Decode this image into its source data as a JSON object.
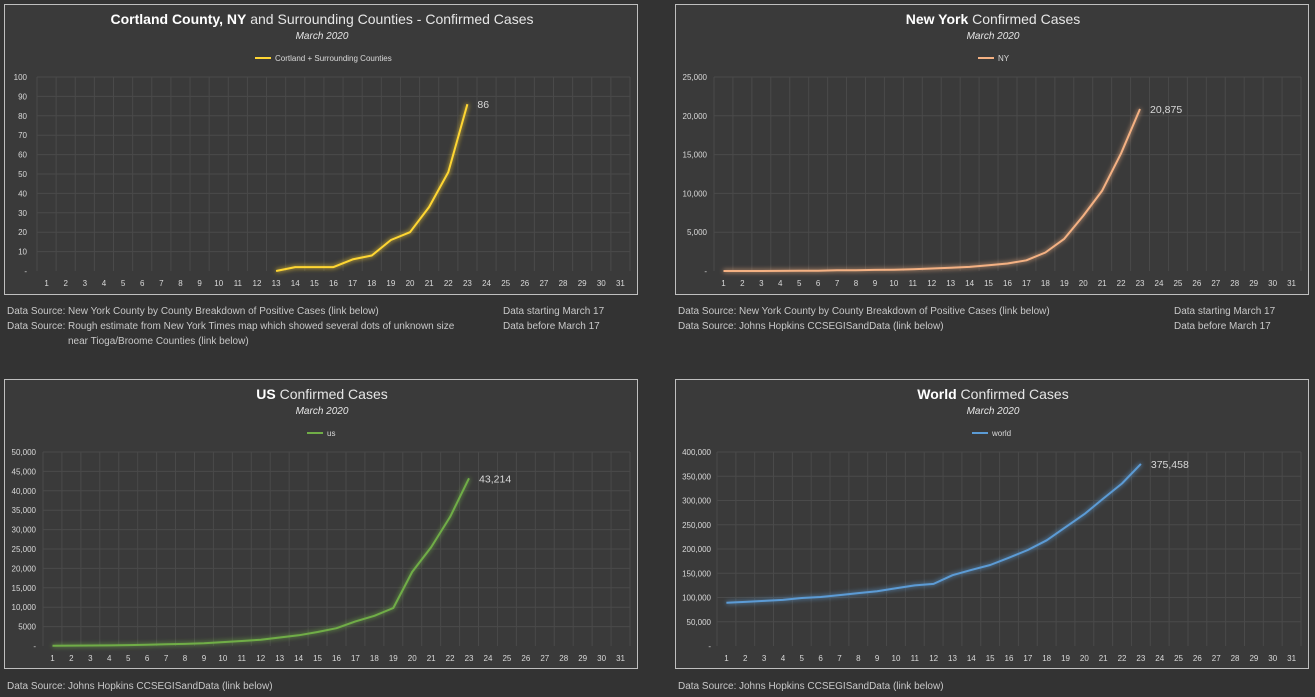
{
  "colors": {
    "background": "#333333",
    "plot": "#3a3a3a",
    "grid": "#4a4a4a",
    "cortland": "#ffd633",
    "ny": "#f4b183",
    "us": "#70ad47",
    "world": "#5b9bd5"
  },
  "chart_data": [
    {
      "id": "cortland",
      "type": "line",
      "title_bold": "Cortland County, NY",
      "title_rest": " and Surrounding Counties - Confirmed Cases",
      "subtitle": "March 2020",
      "legend": "Cortland + Surrounding Counties",
      "x": [
        1,
        2,
        3,
        4,
        5,
        6,
        7,
        8,
        9,
        10,
        11,
        12,
        13,
        14,
        15,
        16,
        17,
        18,
        19,
        20,
        21,
        22,
        23,
        24,
        25,
        26,
        27,
        28,
        29,
        30,
        31
      ],
      "ylim": [
        0,
        100
      ],
      "yticks": [
        "-",
        "10",
        "20",
        "30",
        "40",
        "50",
        "60",
        "70",
        "80",
        "90",
        "100"
      ],
      "series": [
        {
          "x": [
            13,
            14,
            15,
            16,
            17,
            18,
            19,
            20,
            21,
            22,
            23
          ],
          "values": [
            0,
            2,
            2,
            2,
            6,
            8,
            16,
            20,
            33,
            51,
            86
          ]
        }
      ],
      "end_label": "86"
    },
    {
      "id": "ny",
      "type": "line",
      "title_bold": "New York",
      "title_rest": " Confirmed Cases",
      "subtitle": "March 2020",
      "legend": "NY",
      "x": [
        1,
        2,
        3,
        4,
        5,
        6,
        7,
        8,
        9,
        10,
        11,
        12,
        13,
        14,
        15,
        16,
        17,
        18,
        19,
        20,
        21,
        22,
        23,
        24,
        25,
        26,
        27,
        28,
        29,
        30,
        31
      ],
      "ylim": [
        0,
        25000
      ],
      "yticks": [
        "-",
        "5,000",
        "10,000",
        "15,000",
        "20,000",
        "25,000"
      ],
      "series": [
        {
          "x": [
            1,
            2,
            3,
            4,
            5,
            6,
            7,
            8,
            9,
            10,
            11,
            12,
            13,
            14,
            15,
            16,
            17,
            18,
            19,
            20,
            21,
            22,
            23
          ],
          "values": [
            1,
            1,
            2,
            11,
            22,
            44,
            89,
            106,
            142,
            173,
            220,
            328,
            421,
            525,
            732,
            967,
            1374,
            2382,
            4152,
            7102,
            10356,
            15168,
            20875
          ]
        }
      ],
      "end_label": "20,875"
    },
    {
      "id": "us",
      "type": "line",
      "title_bold": "US",
      "title_rest": " Confirmed Cases",
      "subtitle": "March 2020",
      "legend": "us",
      "x": [
        1,
        2,
        3,
        4,
        5,
        6,
        7,
        8,
        9,
        10,
        11,
        12,
        13,
        14,
        15,
        16,
        17,
        18,
        19,
        20,
        21,
        22,
        23,
        24,
        25,
        26,
        27,
        28,
        29,
        30,
        31
      ],
      "ylim": [
        0,
        50000
      ],
      "yticks": [
        "-",
        "5000",
        "10,000",
        "15,000",
        "20,000",
        "25,000",
        "30,000",
        "35,000",
        "40,000",
        "45,000",
        "50,000"
      ],
      "series": [
        {
          "x": [
            1,
            2,
            3,
            4,
            5,
            6,
            7,
            8,
            9,
            10,
            11,
            12,
            13,
            14,
            15,
            16,
            17,
            18,
            19,
            20,
            21,
            22,
            23
          ],
          "values": [
            75,
            100,
            124,
            158,
            221,
            319,
            435,
            541,
            704,
            994,
            1301,
            1630,
            2183,
            2770,
            3613,
            4596,
            6344,
            7783,
            9800,
            19100,
            25489,
            33276,
            43214
          ]
        }
      ],
      "end_label": "43,214"
    },
    {
      "id": "world",
      "type": "line",
      "title_bold": "World",
      "title_rest": " Confirmed Cases",
      "subtitle": "March 2020",
      "legend": "world",
      "x": [
        1,
        2,
        3,
        4,
        5,
        6,
        7,
        8,
        9,
        10,
        11,
        12,
        13,
        14,
        15,
        16,
        17,
        18,
        19,
        20,
        21,
        22,
        23,
        24,
        25,
        26,
        27,
        28,
        29,
        30,
        31
      ],
      "ylim": [
        0,
        400000
      ],
      "yticks": [
        "-",
        "50,000",
        "100,000",
        "150,000",
        "200,000",
        "250,000",
        "300,000",
        "350,000",
        "400,000"
      ],
      "series": [
        {
          "x": [
            1,
            2,
            3,
            4,
            5,
            6,
            7,
            8,
            9,
            10,
            11,
            12,
            13,
            14,
            15,
            16,
            17,
            18,
            19,
            20,
            21,
            22,
            23
          ],
          "values": [
            89000,
            91000,
            93000,
            95000,
            99000,
            101000,
            105000,
            109000,
            113000,
            119000,
            125000,
            128000,
            146000,
            157000,
            167000,
            182000,
            198000,
            218000,
            245000,
            272000,
            304000,
            335000,
            375458
          ]
        }
      ],
      "end_label": "375,458"
    }
  ],
  "sources": {
    "cortland": [
      {
        "label": "Data Source:",
        "text": "New York County by County Breakdown of Positive Cases (link below)",
        "note": "Data starting March 17"
      },
      {
        "label": "Data Source:",
        "text": "Rough estimate from New York Times map which showed several dots of unknown size near Tioga/Broome Counties (link below)",
        "note": "Data before March 17"
      }
    ],
    "ny": [
      {
        "label": "Data Source:",
        "text": "New York County by County Breakdown of Positive Cases (link below)",
        "note": "Data starting March 17"
      },
      {
        "label": "Data Source:",
        "text": "Johns Hopkins CCSEGISandData (link below)",
        "note": "Data before March 17"
      }
    ],
    "us": [
      {
        "label": "Data Source:",
        "text": "Johns Hopkins CCSEGISandData (link below)"
      }
    ],
    "world": [
      {
        "label": "Data Source:",
        "text": "Johns Hopkins CCSEGISandData (link below)"
      }
    ]
  }
}
